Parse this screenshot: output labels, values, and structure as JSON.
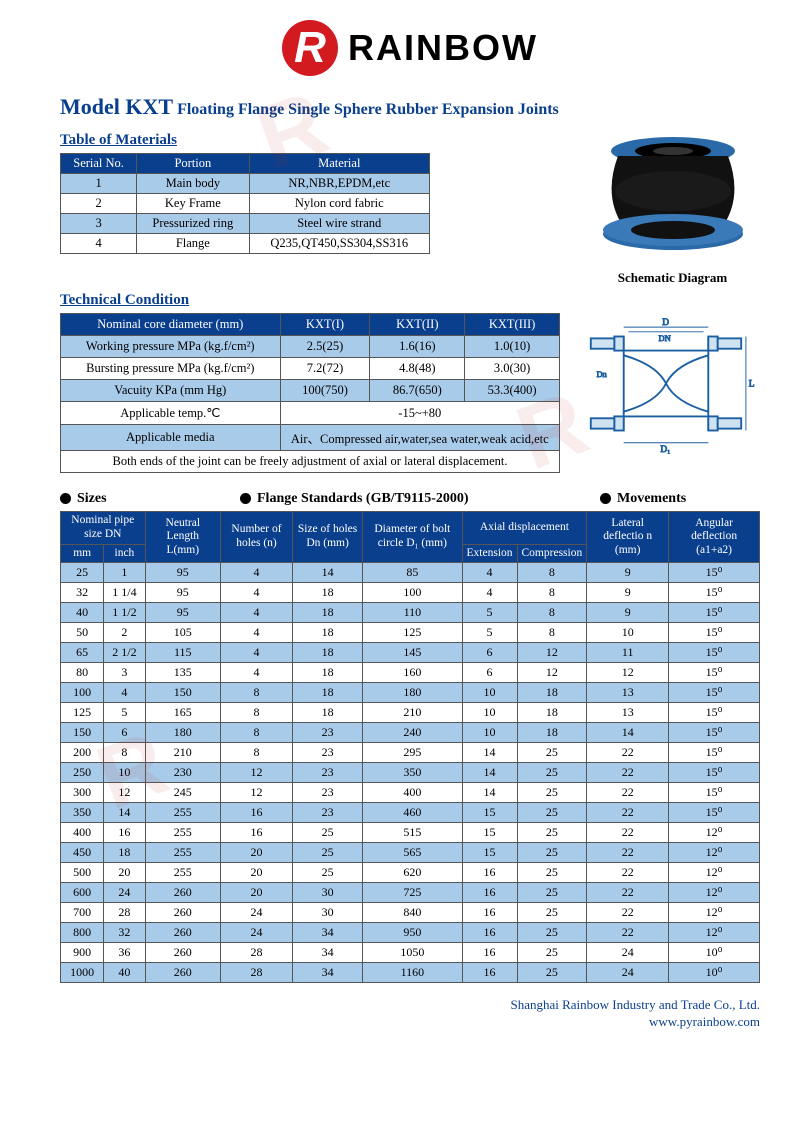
{
  "brand": {
    "mark": "R",
    "name": "RAINBOW"
  },
  "title_model": "Model KXT",
  "title_rest": "Floating Flange Single Sphere Rubber Expansion Joints",
  "materials": {
    "heading": "Table of Materials",
    "columns": [
      "Serial No.",
      "Portion",
      "Material"
    ],
    "rows": [
      [
        "1",
        "Main body",
        "NR,NBR,EPDM,etc"
      ],
      [
        "2",
        "Key Frame",
        "Nylon cord fabric"
      ],
      [
        "3",
        "Pressurized ring",
        "Steel wire strand"
      ],
      [
        "4",
        "Flange",
        "Q235,QT450,SS304,SS316"
      ]
    ]
  },
  "schematic_label": "Schematic Diagram",
  "technical": {
    "heading": "Technical Condition",
    "columns": [
      "Nominal core diameter (mm)",
      "KXT(I)",
      "KXT(II)",
      "KXT(III)"
    ],
    "rows": [
      [
        "Working pressure MPa (kg.f/cm²)",
        "2.5(25)",
        "1.6(16)",
        "1.0(10)"
      ],
      [
        "Bursting pressure MPa (kg.f/cm²)",
        "7.2(72)",
        "4.8(48)",
        "3.0(30)"
      ],
      [
        "Vacuity KPa (mm Hg)",
        "100(750)",
        "86.7(650)",
        "53.3(400)"
      ]
    ],
    "temp_label": "Applicable temp.℃",
    "temp_value": "-15~+80",
    "media_label": "Applicable media",
    "media_value": "Air、Compressed air,water,sea water,weak acid,etc",
    "note": "Both ends of the joint can be freely adjustment of axial or lateral displacement."
  },
  "section_heads": {
    "sizes": "Sizes",
    "standards": "Flange Standards (GB/T9115-2000)",
    "movements": "Movements"
  },
  "sizes": {
    "head": {
      "nominal": "Nominal pipe size  DN",
      "mm": "mm",
      "inch": "inch",
      "neutral": "Neutral Length L(mm)",
      "holes_n": "Number of holes (n)",
      "holes_size": "Size of holes Dn (mm)",
      "bolt": "Diameter of bolt  circle D₁ (mm)",
      "axial": "Axial displacement",
      "ext": "Extension",
      "comp": "Compression",
      "lateral": "Lateral deflectio n (mm)",
      "angular": "Angular deflection (a1+a2)"
    },
    "rows": [
      [
        "25",
        "1",
        "95",
        "4",
        "14",
        "85",
        "4",
        "8",
        "9",
        "15⁰"
      ],
      [
        "32",
        "1 1/4",
        "95",
        "4",
        "18",
        "100",
        "4",
        "8",
        "9",
        "15⁰"
      ],
      [
        "40",
        "1 1/2",
        "95",
        "4",
        "18",
        "110",
        "5",
        "8",
        "9",
        "15⁰"
      ],
      [
        "50",
        "2",
        "105",
        "4",
        "18",
        "125",
        "5",
        "8",
        "10",
        "15⁰"
      ],
      [
        "65",
        "2 1/2",
        "115",
        "4",
        "18",
        "145",
        "6",
        "12",
        "11",
        "15⁰"
      ],
      [
        "80",
        "3",
        "135",
        "4",
        "18",
        "160",
        "6",
        "12",
        "12",
        "15⁰"
      ],
      [
        "100",
        "4",
        "150",
        "8",
        "18",
        "180",
        "10",
        "18",
        "13",
        "15⁰"
      ],
      [
        "125",
        "5",
        "165",
        "8",
        "18",
        "210",
        "10",
        "18",
        "13",
        "15⁰"
      ],
      [
        "150",
        "6",
        "180",
        "8",
        "23",
        "240",
        "10",
        "18",
        "14",
        "15⁰"
      ],
      [
        "200",
        "8",
        "210",
        "8",
        "23",
        "295",
        "14",
        "25",
        "22",
        "15⁰"
      ],
      [
        "250",
        "10",
        "230",
        "12",
        "23",
        "350",
        "14",
        "25",
        "22",
        "15⁰"
      ],
      [
        "300",
        "12",
        "245",
        "12",
        "23",
        "400",
        "14",
        "25",
        "22",
        "15⁰"
      ],
      [
        "350",
        "14",
        "255",
        "16",
        "23",
        "460",
        "15",
        "25",
        "22",
        "15⁰"
      ],
      [
        "400",
        "16",
        "255",
        "16",
        "25",
        "515",
        "15",
        "25",
        "22",
        "12⁰"
      ],
      [
        "450",
        "18",
        "255",
        "20",
        "25",
        "565",
        "15",
        "25",
        "22",
        "12⁰"
      ],
      [
        "500",
        "20",
        "255",
        "20",
        "25",
        "620",
        "16",
        "25",
        "22",
        "12⁰"
      ],
      [
        "600",
        "24",
        "260",
        "20",
        "30",
        "725",
        "16",
        "25",
        "22",
        "12⁰"
      ],
      [
        "700",
        "28",
        "260",
        "24",
        "30",
        "840",
        "16",
        "25",
        "22",
        "12⁰"
      ],
      [
        "800",
        "32",
        "260",
        "24",
        "34",
        "950",
        "16",
        "25",
        "22",
        "12⁰"
      ],
      [
        "900",
        "36",
        "260",
        "28",
        "34",
        "1050",
        "16",
        "25",
        "24",
        "10⁰"
      ],
      [
        "1000",
        "40",
        "260",
        "28",
        "34",
        "1160",
        "16",
        "25",
        "24",
        "10⁰"
      ]
    ]
  },
  "footer": {
    "company": "Shanghai Rainbow Industry and Trade Co., Ltd.",
    "url": "www.pyrainbow.com"
  },
  "watermarks": [
    "RAINBOW",
    "RAINBOW",
    "RAINBOW"
  ]
}
